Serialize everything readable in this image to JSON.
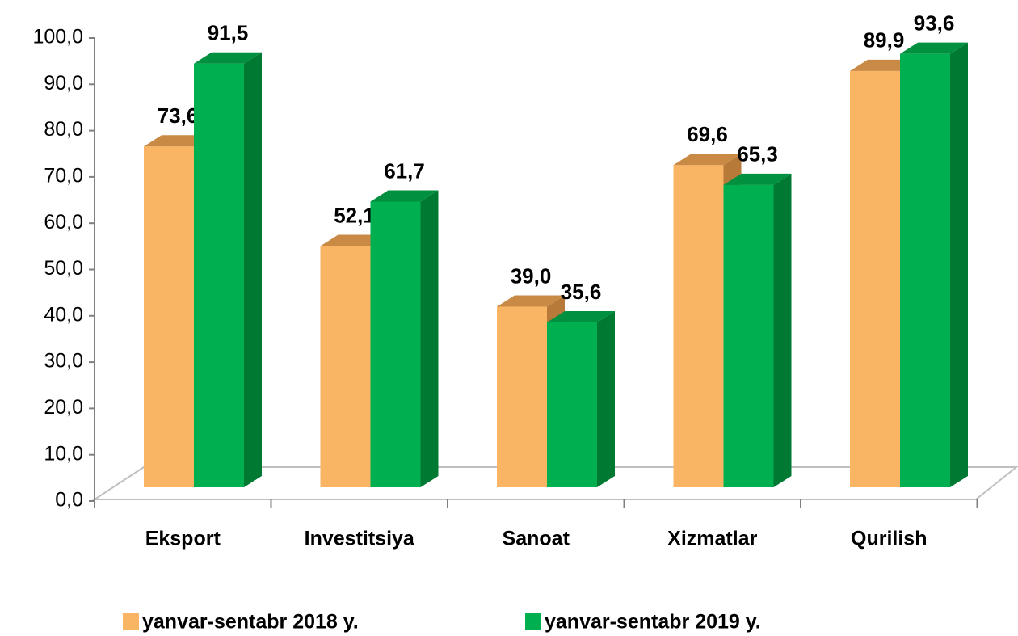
{
  "chart_data": {
    "type": "bar3d",
    "categories": [
      "Eksport",
      "Investitsiya",
      "Sanoat",
      "Xizmatlar",
      "Qurilish"
    ],
    "series": [
      {
        "name": "yanvar-sentabr 2018 y.",
        "color": "#f9b464",
        "top": "#c98a46",
        "side": "#b87a38",
        "values": [
          73.6,
          52.1,
          39.0,
          69.6,
          89.9
        ],
        "value_labels": [
          "73,6",
          "52,1",
          "39,0",
          "69,6",
          "89,9"
        ]
      },
      {
        "name": "yanvar-sentabr 2019 y.",
        "color": "#00b050",
        "top": "#00903f",
        "side": "#007a33",
        "values": [
          91.5,
          61.7,
          35.6,
          65.3,
          93.6
        ],
        "value_labels": [
          "91,5",
          "61,7",
          "35,6",
          "65,3",
          "93,6"
        ]
      }
    ],
    "ylim": [
      0,
      100
    ],
    "yticks": [
      {
        "value": 0,
        "label": "0,0"
      },
      {
        "value": 10,
        "label": "10,0"
      },
      {
        "value": 20,
        "label": "20,0"
      },
      {
        "value": 30,
        "label": "30,0"
      },
      {
        "value": 40,
        "label": "40,0"
      },
      {
        "value": 50,
        "label": "50,0"
      },
      {
        "value": 60,
        "label": "60,0"
      },
      {
        "value": 70,
        "label": "70,0"
      },
      {
        "value": 80,
        "label": "80,0"
      },
      {
        "value": 90,
        "label": "90,0"
      },
      {
        "value": {
          "value": 100,
          "label": "100,0"
        },
        "label": "100,0"
      }
    ],
    "grid": false
  }
}
